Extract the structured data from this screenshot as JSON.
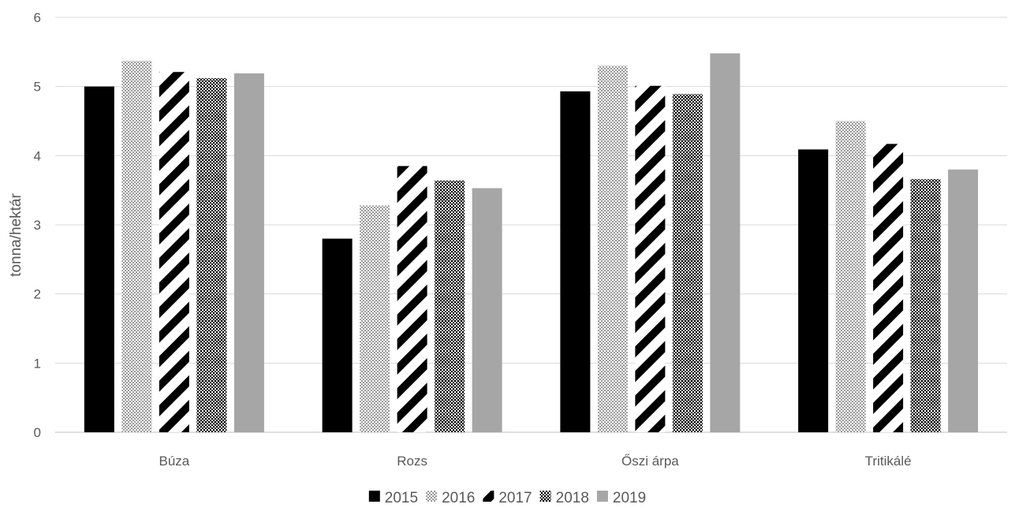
{
  "chart_data": {
    "type": "bar",
    "title": "",
    "xlabel": "",
    "ylabel": "tonna/hektár",
    "ylim": [
      0,
      6
    ],
    "yticks": [
      "0",
      "1",
      "2",
      "3",
      "4",
      "5",
      "6"
    ],
    "grid": "horizontal",
    "legend_position": "bottom",
    "categories": [
      "Búza",
      "Rozs",
      "Őszi árpa",
      "Tritikálé"
    ],
    "series": [
      {
        "name": "2015",
        "values": [
          5.0,
          2.8,
          4.93,
          4.09
        ],
        "color": "#000000",
        "pattern": "solid-black"
      },
      {
        "name": "2016",
        "values": [
          5.37,
          3.28,
          5.3,
          4.5
        ],
        "color": "#bfbfbf",
        "pattern": "dotted-light"
      },
      {
        "name": "2017",
        "values": [
          5.21,
          3.85,
          5.01,
          4.17
        ],
        "color": "#000000",
        "pattern": "wide-diagonal-stripes"
      },
      {
        "name": "2018",
        "values": [
          5.12,
          3.64,
          4.89,
          3.66
        ],
        "color": "#000000",
        "pattern": "dense-checker"
      },
      {
        "name": "2019",
        "values": [
          5.19,
          3.53,
          5.48,
          3.8
        ],
        "color": "#a6a6a6",
        "pattern": "solid-gray"
      }
    ]
  }
}
